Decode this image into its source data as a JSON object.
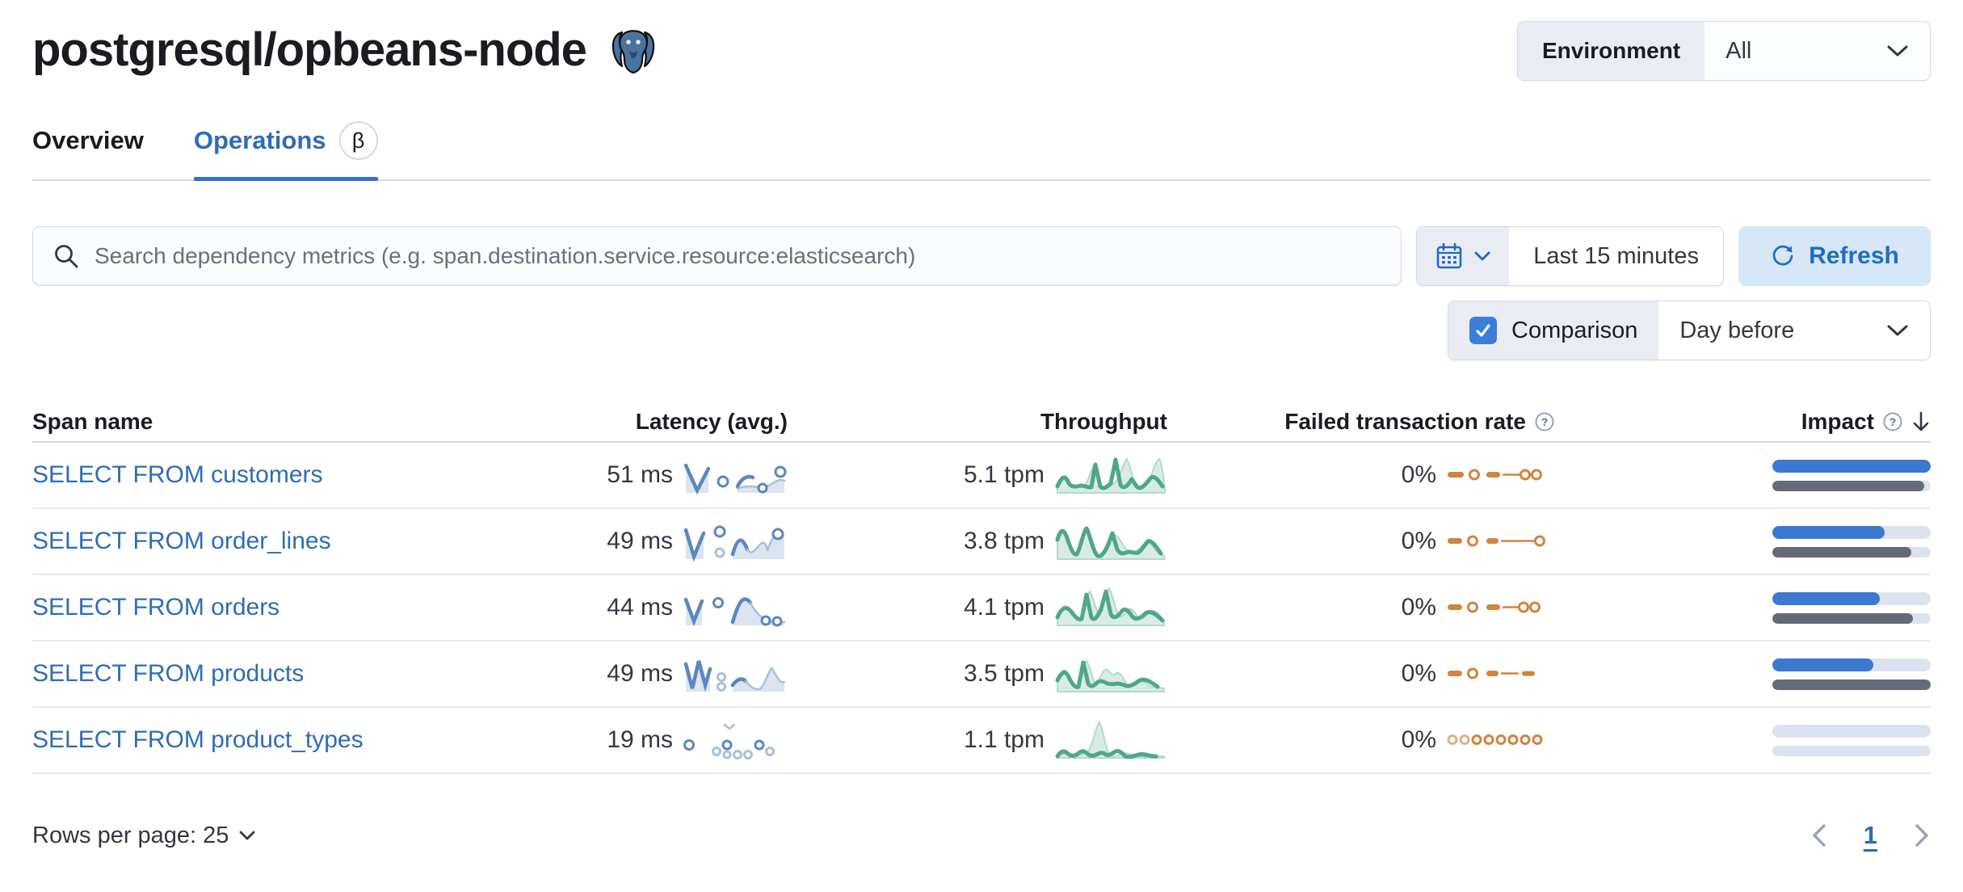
{
  "header": {
    "title": "postgresql/opbeans-node"
  },
  "environment": {
    "label": "Environment",
    "value": "All"
  },
  "tabs": {
    "overview": "Overview",
    "operations": "Operations",
    "beta": "β"
  },
  "toolbar": {
    "search_placeholder": "Search dependency metrics (e.g. span.destination.service.resource:elasticsearch)",
    "time_range": "Last 15 minutes",
    "refresh_label": "Refresh",
    "comparison_label": "Comparison",
    "comparison_value": "Day before"
  },
  "table": {
    "headers": {
      "span": "Span name",
      "latency": "Latency (avg.)",
      "throughput": "Throughput",
      "failed": "Failed transaction rate",
      "impact": "Impact"
    },
    "rows": [
      {
        "name": "SELECT FROM customers",
        "latency": "51 ms",
        "throughput": "5.1 tpm",
        "failed": "0%",
        "impact": {
          "current": 100,
          "previous": 96
        }
      },
      {
        "name": "SELECT FROM order_lines",
        "latency": "49 ms",
        "throughput": "3.8 tpm",
        "failed": "0%",
        "impact": {
          "current": 71,
          "previous": 88
        }
      },
      {
        "name": "SELECT FROM orders",
        "latency": "44 ms",
        "throughput": "4.1 tpm",
        "failed": "0%",
        "impact": {
          "current": 68,
          "previous": 89
        }
      },
      {
        "name": "SELECT FROM products",
        "latency": "49 ms",
        "throughput": "3.5 tpm",
        "failed": "0%",
        "impact": {
          "current": 64,
          "previous": 100
        }
      },
      {
        "name": "SELECT FROM product_types",
        "latency": "19 ms",
        "throughput": "1.1 tpm",
        "failed": "0%",
        "impact": {
          "current": 0,
          "previous": 0
        }
      }
    ]
  },
  "pagination": {
    "rows_per_page": "Rows per page: 25",
    "page": "1"
  },
  "colors": {
    "link_blue": "#2e6cb7",
    "impact_blue": "#3b78cf",
    "impact_gray": "#646a76",
    "green_line": "#4fa68c",
    "orange": "#cf8440",
    "latency_blue": "#5b87bd",
    "form_label_bg": "#e9edf3",
    "border": "#d3dae6",
    "refresh_bg": "#d6e7f7"
  }
}
